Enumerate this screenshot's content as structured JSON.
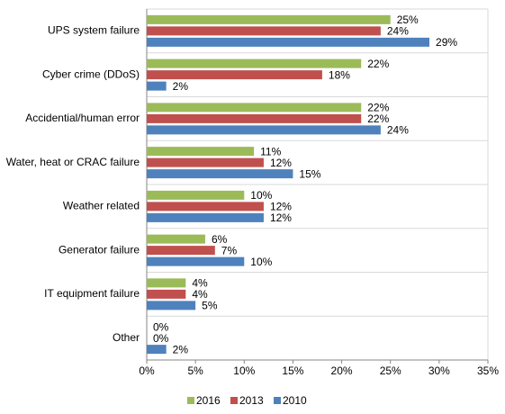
{
  "chart_data": {
    "type": "hbar",
    "categories": [
      "UPS system failure",
      "Cyber crime (DDoS)",
      "Accidential/human error",
      "Water, heat or CRAC failure",
      "Weather related",
      "Generator failure",
      "IT equipment failure",
      "Other"
    ],
    "series": [
      {
        "name": "2016",
        "color": "#9bbb59",
        "values": [
          25,
          22,
          22,
          11,
          10,
          6,
          4,
          0
        ],
        "value_labels": [
          "25%",
          "22%",
          "22%",
          "11%",
          "10%",
          "6%",
          "4%",
          "0%"
        ]
      },
      {
        "name": "2013",
        "color": "#c0504d",
        "values": [
          24,
          18,
          22,
          12,
          12,
          7,
          4,
          0
        ],
        "value_labels": [
          "24%",
          "18%",
          "22%",
          "12%",
          "12%",
          "7%",
          "4%",
          "0%"
        ]
      },
      {
        "name": "2010",
        "color": "#4f81bd",
        "values": [
          29,
          2,
          24,
          15,
          12,
          10,
          5,
          2
        ],
        "value_labels": [
          "29%",
          "2%",
          "24%",
          "15%",
          "12%",
          "10%",
          "5%",
          "2%"
        ]
      }
    ],
    "xlim": [
      0,
      35
    ],
    "xticks": [
      {
        "value": 0,
        "label": "0%"
      },
      {
        "value": 5,
        "label": "5%"
      },
      {
        "value": 10,
        "label": "10%"
      },
      {
        "value": 15,
        "label": "15%"
      },
      {
        "value": 20,
        "label": "20%"
      },
      {
        "value": 25,
        "label": "25%"
      },
      {
        "value": 30,
        "label": "30%"
      },
      {
        "value": 35,
        "label": "35%"
      }
    ],
    "legend": "bottom"
  }
}
